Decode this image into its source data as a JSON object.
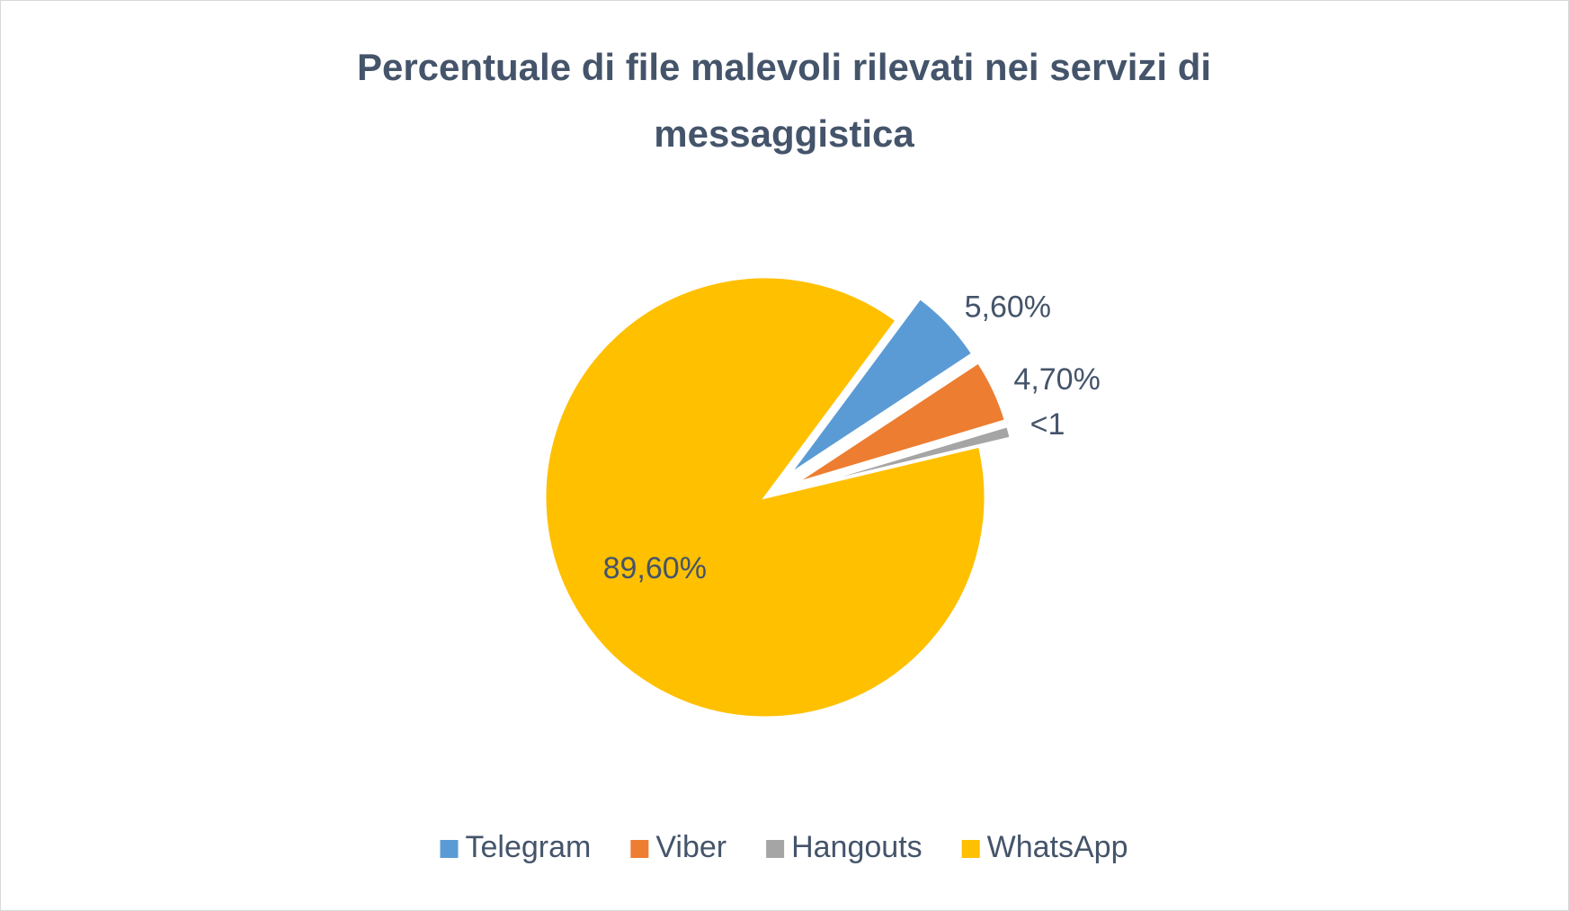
{
  "chart_data": {
    "type": "pie",
    "title": "Percentuale di file malevoli rilevati nei servizi di messaggistica",
    "categories": [
      "Telegram",
      "Viber",
      "Hangouts",
      "WhatsApp"
    ],
    "values": [
      5.6,
      4.7,
      0.9,
      89.6
    ],
    "value_labels": [
      "5,60%",
      "4,70%",
      "<1",
      "89,60%"
    ],
    "colors": [
      "#5b9bd5",
      "#ed7d31",
      "#a5a5a5",
      "#ffc000"
    ],
    "legend": "bottom"
  }
}
